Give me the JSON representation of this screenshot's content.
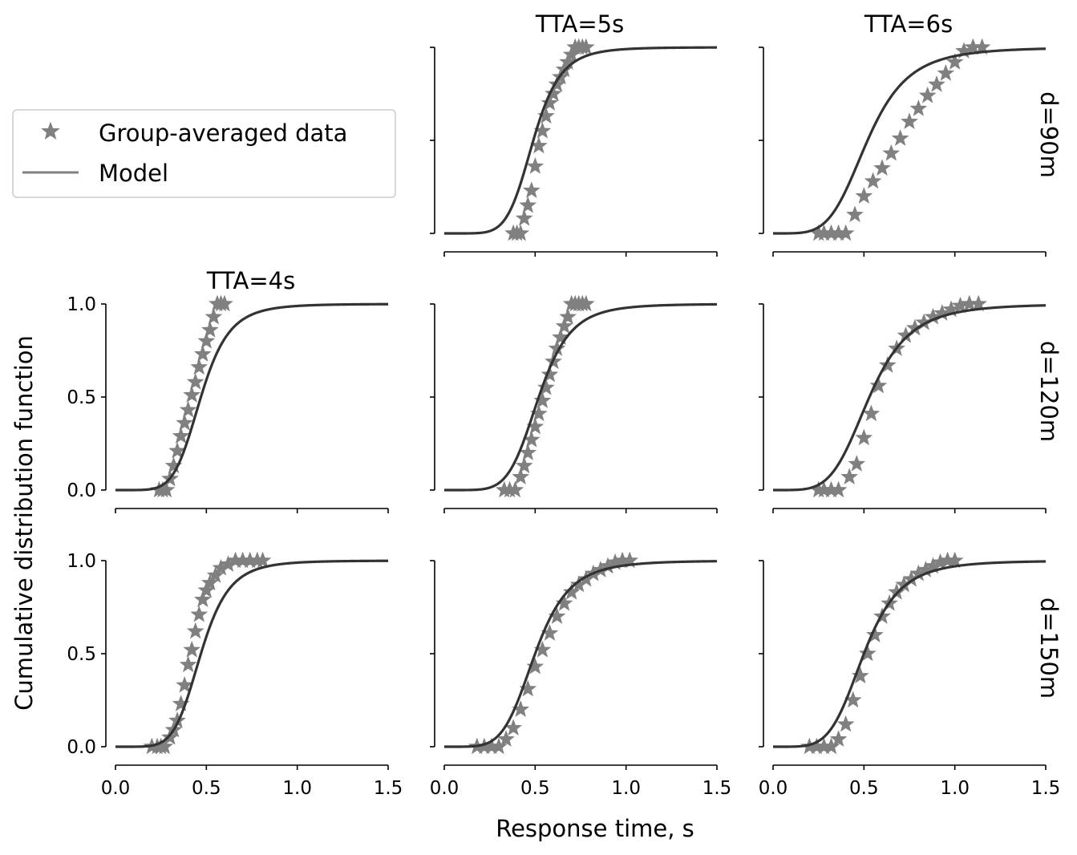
{
  "figure": {
    "xlabel": "Response time, s",
    "ylabel": "Cumulative distribution function",
    "column_titles": [
      "TTA=4s",
      "TTA=5s",
      "TTA=6s"
    ],
    "row_labels": [
      "d=90m",
      "d=120m",
      "d=150m"
    ],
    "legend": {
      "data_label": "Group-averaged data",
      "model_label": "Model",
      "placement": "upper-left"
    },
    "x_ticks": [
      "0.0",
      "0.5",
      "1.0",
      "1.5"
    ],
    "y_ticks": [
      "0.0",
      "0.5",
      "1.0"
    ],
    "colors": {
      "data": "#808080",
      "model": "#333333"
    }
  },
  "chart_data": [
    {
      "type": "line",
      "row_label": "d=90m",
      "column_title": "TTA=5s",
      "xlim": [
        0,
        1.5
      ],
      "ylim": [
        0,
        1
      ],
      "model": {
        "median": 0.49,
        "shape": 6.5
      },
      "data": {
        "x": [
          0.38,
          0.4,
          0.42,
          0.44,
          0.46,
          0.48,
          0.5,
          0.52,
          0.54,
          0.56,
          0.58,
          0.6,
          0.62,
          0.64,
          0.66,
          0.68,
          0.7,
          0.72,
          0.74,
          0.76,
          0.78
        ],
        "y": [
          0,
          0,
          0,
          0.08,
          0.15,
          0.23,
          0.36,
          0.47,
          0.55,
          0.63,
          0.7,
          0.75,
          0.8,
          0.84,
          0.88,
          0.92,
          0.96,
          1,
          1,
          1,
          1
        ]
      }
    },
    {
      "type": "line",
      "row_label": "d=90m",
      "column_title": "TTA=6s",
      "xlim": [
        0,
        1.5
      ],
      "ylim": [
        0,
        1
      ],
      "model": {
        "median": 0.52,
        "shape": 4.6
      },
      "data": {
        "x": [
          0.25,
          0.28,
          0.32,
          0.36,
          0.4,
          0.45,
          0.5,
          0.55,
          0.6,
          0.65,
          0.7,
          0.75,
          0.8,
          0.85,
          0.9,
          0.95,
          1.0,
          1.05,
          1.1,
          1.15
        ],
        "y": [
          0,
          0,
          0,
          0,
          0,
          0.1,
          0.2,
          0.28,
          0.35,
          0.43,
          0.51,
          0.6,
          0.67,
          0.74,
          0.8,
          0.86,
          0.92,
          0.98,
          1,
          1
        ]
      }
    },
    {
      "type": "line",
      "row_label": "d=120m",
      "column_title": "TTA=4s",
      "xlim": [
        0,
        1.5
      ],
      "ylim": [
        0,
        1
      ],
      "model": {
        "median": 0.47,
        "shape": 6.0
      },
      "data": {
        "x": [
          0.24,
          0.26,
          0.28,
          0.3,
          0.32,
          0.34,
          0.36,
          0.38,
          0.4,
          0.42,
          0.44,
          0.46,
          0.48,
          0.5,
          0.52,
          0.54,
          0.56,
          0.58,
          0.6
        ],
        "y": [
          0,
          0,
          0,
          0.06,
          0.13,
          0.21,
          0.29,
          0.36,
          0.43,
          0.51,
          0.58,
          0.66,
          0.73,
          0.8,
          0.86,
          0.93,
          1,
          1,
          1
        ]
      }
    },
    {
      "type": "line",
      "row_label": "d=120m",
      "column_title": "TTA=5s",
      "xlim": [
        0,
        1.5
      ],
      "ylim": [
        0,
        1
      ],
      "model": {
        "median": 0.52,
        "shape": 5.9
      },
      "data": {
        "x": [
          0.33,
          0.36,
          0.39,
          0.42,
          0.44,
          0.46,
          0.48,
          0.5,
          0.52,
          0.54,
          0.56,
          0.58,
          0.6,
          0.62,
          0.64,
          0.66,
          0.68,
          0.7,
          0.72,
          0.74,
          0.76,
          0.78
        ],
        "y": [
          0,
          0,
          0,
          0.07,
          0.13,
          0.2,
          0.27,
          0.34,
          0.41,
          0.48,
          0.55,
          0.62,
          0.69,
          0.76,
          0.82,
          0.88,
          0.93,
          1,
          1,
          1,
          1,
          1
        ]
      }
    },
    {
      "type": "line",
      "row_label": "d=120m",
      "column_title": "TTA=6s",
      "xlim": [
        0,
        1.5
      ],
      "ylim": [
        0,
        1
      ],
      "model": {
        "median": 0.53,
        "shape": 4.7
      },
      "data": {
        "x": [
          0.25,
          0.28,
          0.32,
          0.36,
          0.42,
          0.46,
          0.5,
          0.54,
          0.58,
          0.63,
          0.68,
          0.73,
          0.78,
          0.83,
          0.88,
          0.93,
          0.98,
          1.03,
          1.08,
          1.13
        ],
        "y": [
          0,
          0,
          0,
          0,
          0.07,
          0.14,
          0.28,
          0.41,
          0.56,
          0.67,
          0.76,
          0.83,
          0.87,
          0.9,
          0.93,
          0.95,
          0.97,
          0.99,
          1,
          1
        ]
      }
    },
    {
      "type": "line",
      "row_label": "d=150m",
      "column_title": "TTA=4s",
      "xlim": [
        0,
        1.5
      ],
      "ylim": [
        0,
        1
      ],
      "model": {
        "median": 0.47,
        "shape": 6.0
      },
      "data": {
        "x": [
          0.2,
          0.23,
          0.25,
          0.27,
          0.3,
          0.32,
          0.34,
          0.36,
          0.38,
          0.4,
          0.42,
          0.44,
          0.46,
          0.48,
          0.5,
          0.52,
          0.55,
          0.58,
          0.62,
          0.66,
          0.7,
          0.74,
          0.78,
          0.81
        ],
        "y": [
          0,
          0,
          0,
          0,
          0.05,
          0.09,
          0.14,
          0.23,
          0.33,
          0.44,
          0.52,
          0.62,
          0.71,
          0.79,
          0.84,
          0.88,
          0.92,
          0.96,
          0.98,
          1,
          1,
          1,
          1,
          1
        ]
      }
    },
    {
      "type": "line",
      "row_label": "d=150m",
      "column_title": "TTA=5s",
      "xlim": [
        0,
        1.5
      ],
      "ylim": [
        0,
        1
      ],
      "model": {
        "median": 0.5,
        "shape": 5.3
      },
      "data": {
        "x": [
          0.18,
          0.22,
          0.26,
          0.3,
          0.34,
          0.38,
          0.42,
          0.46,
          0.5,
          0.54,
          0.58,
          0.62,
          0.66,
          0.7,
          0.74,
          0.78,
          0.82,
          0.86,
          0.9,
          0.94,
          0.98,
          1.02
        ],
        "y": [
          0,
          0,
          0,
          0,
          0.04,
          0.1,
          0.2,
          0.31,
          0.43,
          0.52,
          0.61,
          0.7,
          0.77,
          0.83,
          0.87,
          0.9,
          0.93,
          0.95,
          0.97,
          0.99,
          1,
          1
        ]
      }
    },
    {
      "type": "line",
      "row_label": "d=150m",
      "column_title": "TTA=6s",
      "xlim": [
        0,
        1.5
      ],
      "ylim": [
        0,
        1
      ],
      "model": {
        "median": 0.5,
        "shape": 5.0
      },
      "data": {
        "x": [
          0.2,
          0.24,
          0.28,
          0.32,
          0.36,
          0.4,
          0.44,
          0.48,
          0.52,
          0.56,
          0.6,
          0.64,
          0.68,
          0.72,
          0.76,
          0.8,
          0.84,
          0.88,
          0.92,
          0.96,
          1.0
        ],
        "y": [
          0,
          0,
          0,
          0,
          0.04,
          0.12,
          0.25,
          0.38,
          0.5,
          0.6,
          0.7,
          0.77,
          0.83,
          0.87,
          0.9,
          0.93,
          0.95,
          0.97,
          0.99,
          1,
          1
        ]
      }
    }
  ]
}
